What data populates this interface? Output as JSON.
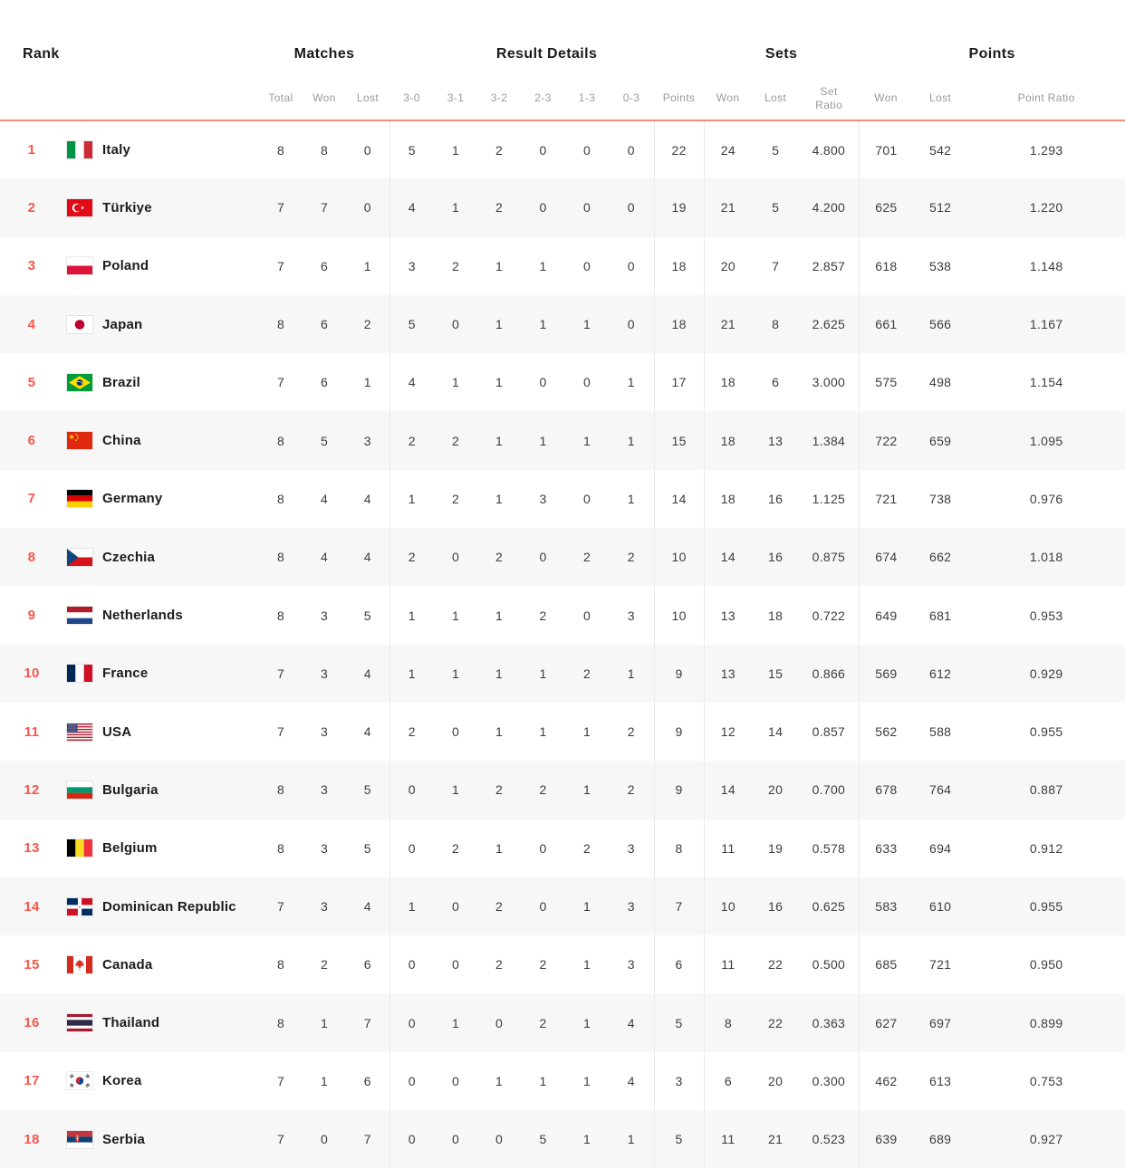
{
  "header": {
    "rank_label": "Rank",
    "groups": [
      {
        "label": "Matches",
        "span": 3
      },
      {
        "label": "Result Details",
        "span": 7
      },
      {
        "label": "Sets",
        "span": 3
      },
      {
        "label": "Points",
        "span": 3
      }
    ],
    "columns": [
      {
        "label": "Total",
        "key": "total"
      },
      {
        "label": "Won",
        "key": "matches-won"
      },
      {
        "label": "Lost",
        "key": "matches-lost"
      },
      {
        "label": "3-0",
        "key": "3-0"
      },
      {
        "label": "3-1",
        "key": "3-1"
      },
      {
        "label": "3-2",
        "key": "3-2"
      },
      {
        "label": "2-3",
        "key": "2-3"
      },
      {
        "label": "1-3",
        "key": "1-3"
      },
      {
        "label": "0-3",
        "key": "0-3"
      },
      {
        "label": "Points",
        "key": "points"
      },
      {
        "label": "Won",
        "key": "sets-won"
      },
      {
        "label": "Lost",
        "key": "sets-lost"
      },
      {
        "label": "Set Ratio",
        "key": "set-ratio"
      },
      {
        "label": "Won",
        "key": "points-won"
      },
      {
        "label": "Lost",
        "key": "points-lost"
      },
      {
        "label": "Point Ratio",
        "key": "point-ratio"
      }
    ],
    "divider_before_keys": [
      "3-0",
      "points",
      "sets-won",
      "points-won"
    ]
  },
  "colors": {
    "accent": "#f8564a",
    "header_rule": "#f98a77",
    "alt_row": "#f7f7f8",
    "divider": "#ebebeb",
    "text": "#3c3c3c",
    "muted": "#9a9a9a"
  },
  "standings": {
    "rows": [
      {
        "rank": 1,
        "country": "Italy",
        "flag": "italy-flag",
        "values": [
          8,
          8,
          0,
          5,
          1,
          2,
          0,
          0,
          0,
          22,
          24,
          5,
          "4.800",
          701,
          542,
          "1.293"
        ]
      },
      {
        "rank": 2,
        "country": "Türkiye",
        "flag": "turkiye-flag",
        "values": [
          7,
          7,
          0,
          4,
          1,
          2,
          0,
          0,
          0,
          19,
          21,
          5,
          "4.200",
          625,
          512,
          "1.220"
        ]
      },
      {
        "rank": 3,
        "country": "Poland",
        "flag": "poland-flag",
        "values": [
          7,
          6,
          1,
          3,
          2,
          1,
          1,
          0,
          0,
          18,
          20,
          7,
          "2.857",
          618,
          538,
          "1.148"
        ]
      },
      {
        "rank": 4,
        "country": "Japan",
        "flag": "japan-flag",
        "values": [
          8,
          6,
          2,
          5,
          0,
          1,
          1,
          1,
          0,
          18,
          21,
          8,
          "2.625",
          661,
          566,
          "1.167"
        ]
      },
      {
        "rank": 5,
        "country": "Brazil",
        "flag": "brazil-flag",
        "values": [
          7,
          6,
          1,
          4,
          1,
          1,
          0,
          0,
          1,
          17,
          18,
          6,
          "3.000",
          575,
          498,
          "1.154"
        ]
      },
      {
        "rank": 6,
        "country": "China",
        "flag": "china-flag",
        "values": [
          8,
          5,
          3,
          2,
          2,
          1,
          1,
          1,
          1,
          15,
          18,
          13,
          "1.384",
          722,
          659,
          "1.095"
        ]
      },
      {
        "rank": 7,
        "country": "Germany",
        "flag": "germany-flag",
        "values": [
          8,
          4,
          4,
          1,
          2,
          1,
          3,
          0,
          1,
          14,
          18,
          16,
          "1.125",
          721,
          738,
          "0.976"
        ]
      },
      {
        "rank": 8,
        "country": "Czechia",
        "flag": "czechia-flag",
        "values": [
          8,
          4,
          4,
          2,
          0,
          2,
          0,
          2,
          2,
          10,
          14,
          16,
          "0.875",
          674,
          662,
          "1.018"
        ]
      },
      {
        "rank": 9,
        "country": "Netherlands",
        "flag": "netherlands-flag",
        "values": [
          8,
          3,
          5,
          1,
          1,
          1,
          2,
          0,
          3,
          10,
          13,
          18,
          "0.722",
          649,
          681,
          "0.953"
        ]
      },
      {
        "rank": 10,
        "country": "France",
        "flag": "france-flag",
        "values": [
          7,
          3,
          4,
          1,
          1,
          1,
          1,
          2,
          1,
          9,
          13,
          15,
          "0.866",
          569,
          612,
          "0.929"
        ]
      },
      {
        "rank": 11,
        "country": "USA",
        "flag": "usa-flag",
        "values": [
          7,
          3,
          4,
          2,
          0,
          1,
          1,
          1,
          2,
          9,
          12,
          14,
          "0.857",
          562,
          588,
          "0.955"
        ]
      },
      {
        "rank": 12,
        "country": "Bulgaria",
        "flag": "bulgaria-flag",
        "values": [
          8,
          3,
          5,
          0,
          1,
          2,
          2,
          1,
          2,
          9,
          14,
          20,
          "0.700",
          678,
          764,
          "0.887"
        ]
      },
      {
        "rank": 13,
        "country": "Belgium",
        "flag": "belgium-flag",
        "values": [
          8,
          3,
          5,
          0,
          2,
          1,
          0,
          2,
          3,
          8,
          11,
          19,
          "0.578",
          633,
          694,
          "0.912"
        ]
      },
      {
        "rank": 14,
        "country": "Dominican Republic",
        "flag": "dominican-republic-flag",
        "values": [
          7,
          3,
          4,
          1,
          0,
          2,
          0,
          1,
          3,
          7,
          10,
          16,
          "0.625",
          583,
          610,
          "0.955"
        ]
      },
      {
        "rank": 15,
        "country": "Canada",
        "flag": "canada-flag",
        "values": [
          8,
          2,
          6,
          0,
          0,
          2,
          2,
          1,
          3,
          6,
          11,
          22,
          "0.500",
          685,
          721,
          "0.950"
        ]
      },
      {
        "rank": 16,
        "country": "Thailand",
        "flag": "thailand-flag",
        "values": [
          8,
          1,
          7,
          0,
          1,
          0,
          2,
          1,
          4,
          5,
          8,
          22,
          "0.363",
          627,
          697,
          "0.899"
        ]
      },
      {
        "rank": 17,
        "country": "Korea",
        "flag": "korea-flag",
        "values": [
          7,
          1,
          6,
          0,
          0,
          1,
          1,
          1,
          4,
          3,
          6,
          20,
          "0.300",
          462,
          613,
          "0.753"
        ]
      },
      {
        "rank": 18,
        "country": "Serbia",
        "flag": "serbia-flag",
        "values": [
          7,
          0,
          7,
          0,
          0,
          0,
          5,
          1,
          1,
          5,
          11,
          21,
          "0.523",
          639,
          689,
          "0.927"
        ]
      }
    ]
  }
}
